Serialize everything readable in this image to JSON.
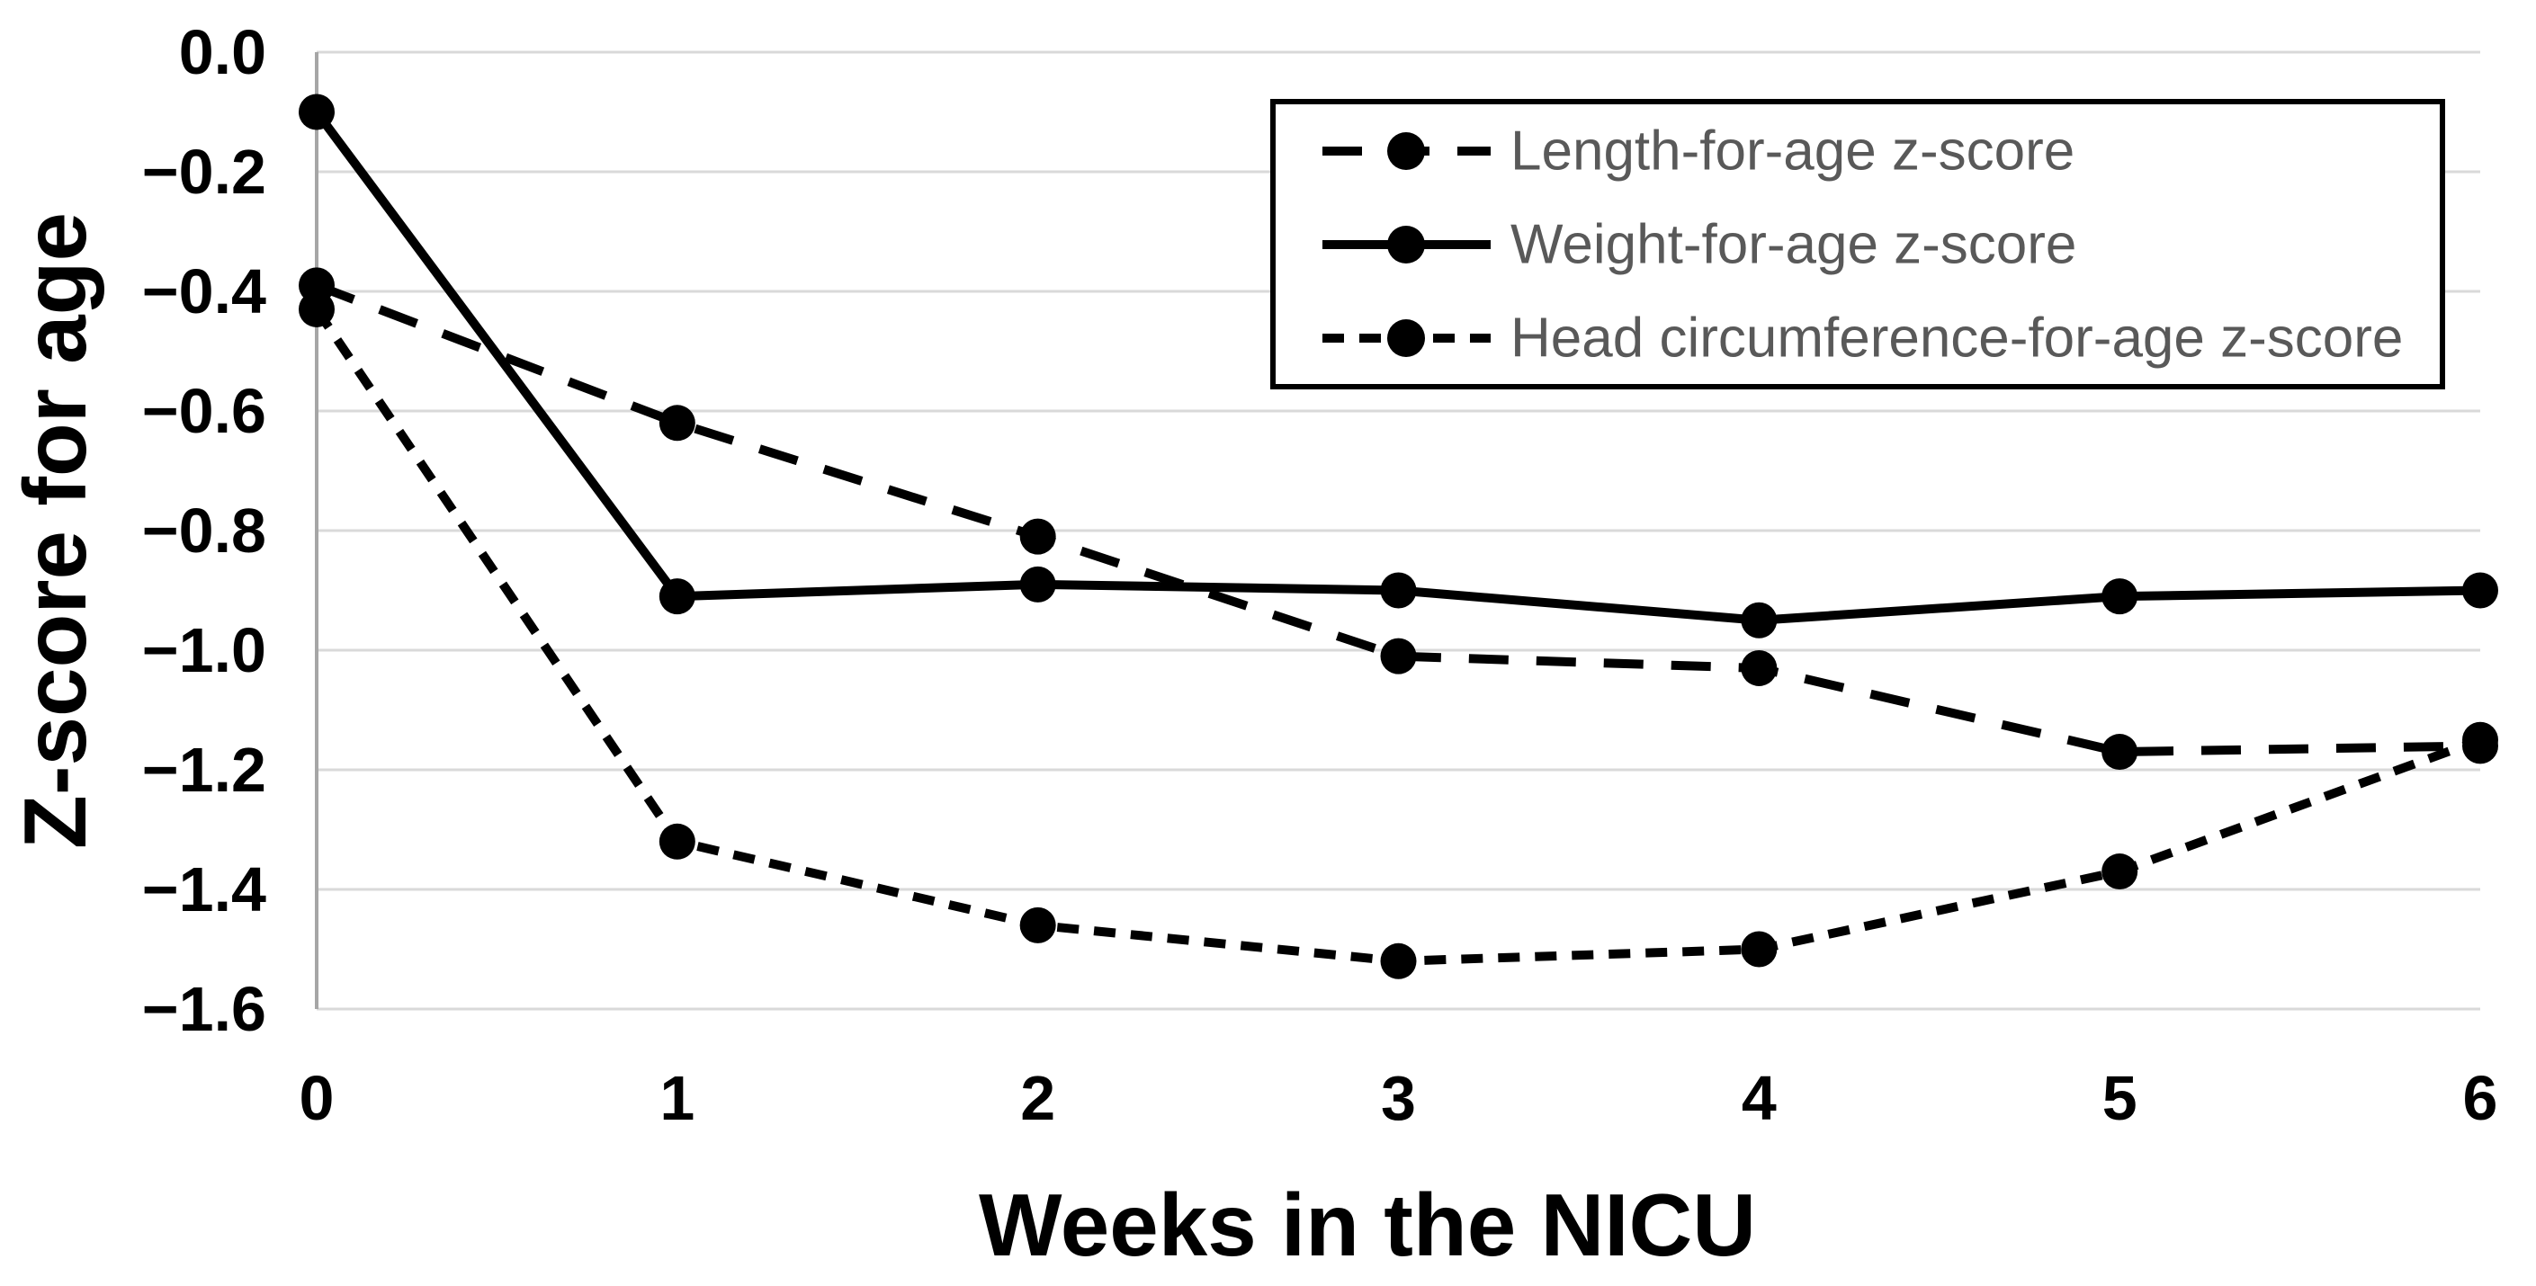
{
  "chart_data": {
    "type": "line",
    "title": "",
    "xlabel": "Weeks in the NICU",
    "ylabel": "Z-score for age",
    "x": [
      0,
      1,
      2,
      3,
      4,
      5,
      6
    ],
    "xtick_labels": [
      "0",
      "1",
      "2",
      "3",
      "4",
      "5",
      "6"
    ],
    "xlim": [
      0,
      6
    ],
    "ylim": [
      -1.6,
      0.0
    ],
    "yticks": [
      0.0,
      -0.2,
      -0.4,
      -0.6,
      -0.8,
      -1.0,
      -1.2,
      -1.4,
      -1.6
    ],
    "ytick_labels": [
      "0.0",
      "−0.2",
      "−0.4",
      "−0.6",
      "−0.8",
      "−1.0",
      "−1.2",
      "−1.4",
      "−1.6"
    ],
    "grid": "horizontal",
    "legend_position": "top-right",
    "series": [
      {
        "name": "Length-for-age z-score",
        "line_style": "long-dash",
        "marker": "filled-circle",
        "values": [
          -0.39,
          -0.62,
          -0.81,
          -1.01,
          -1.03,
          -1.17,
          -1.16
        ]
      },
      {
        "name": "Weight-for-age z-score",
        "line_style": "solid",
        "marker": "filled-circle",
        "values": [
          -0.1,
          -0.91,
          -0.89,
          -0.9,
          -0.95,
          -0.91,
          -0.9
        ]
      },
      {
        "name": "Head circumference-for-age z-score",
        "line_style": "short-dash",
        "marker": "filled-circle",
        "values": [
          -0.43,
          -1.32,
          -1.46,
          -1.52,
          -1.5,
          -1.37,
          -1.15
        ]
      }
    ],
    "colors": {
      "series": "#000000",
      "legend_text": "#595959",
      "legend_border": "#000000",
      "gridline": "#d9d9d9",
      "axis_line": "#a6a6a6",
      "background": "#ffffff"
    }
  }
}
